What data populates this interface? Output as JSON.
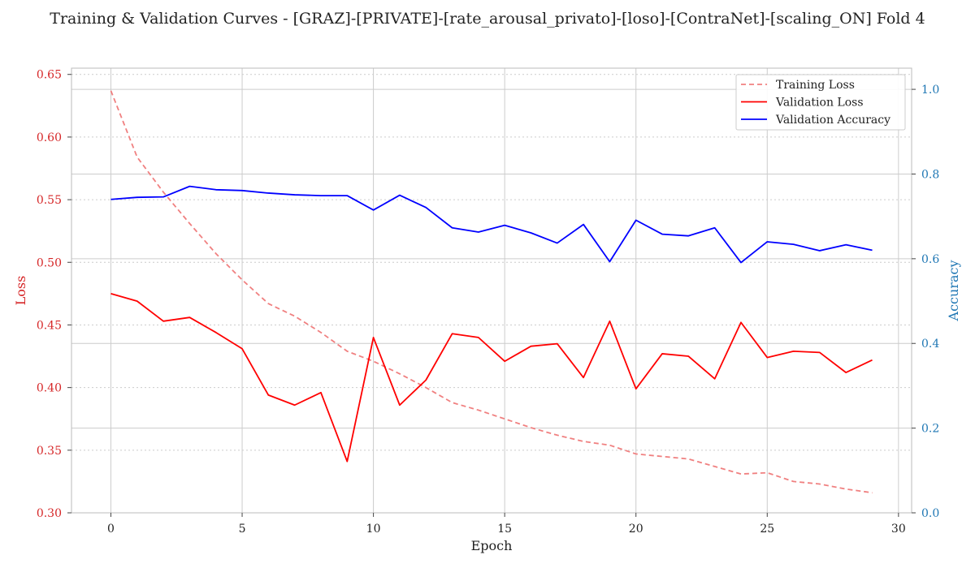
{
  "chart_data": {
    "type": "line",
    "title": "Training & Validation Curves - [GRAZ]-[PRIVATE]-[rate_arousal_privato]-[loso]-[ContraNet]-[scaling_ON] Fold 4",
    "xlabel": "Epoch",
    "ylabel_left": "Loss",
    "ylabel_right": "Accuracy",
    "xlim": [
      -1.5,
      30.5
    ],
    "ylim_left": [
      0.3,
      0.655
    ],
    "ylim_right": [
      0.0,
      1.05
    ],
    "xticks": [
      "0",
      "5",
      "10",
      "15",
      "20",
      "25",
      "30"
    ],
    "yticks_left": [
      "0.30",
      "0.35",
      "0.40",
      "0.45",
      "0.50",
      "0.55",
      "0.60",
      "0.65"
    ],
    "yticks_right": [
      "0.0",
      "0.2",
      "0.4",
      "0.6",
      "0.8",
      "1.0"
    ],
    "grid": true,
    "legend_position": "top-right",
    "x": [
      0,
      1,
      2,
      3,
      4,
      5,
      6,
      7,
      8,
      9,
      10,
      11,
      12,
      13,
      14,
      15,
      16,
      17,
      18,
      19,
      20,
      21,
      22,
      23,
      24,
      25,
      26,
      27,
      28,
      29
    ],
    "series": [
      {
        "name": "Training Loss",
        "axis": "left",
        "color": "#f08080",
        "style": "dashed",
        "values": [
          0.637,
          0.584,
          0.556,
          0.531,
          0.507,
          0.486,
          0.467,
          0.457,
          0.444,
          0.429,
          0.421,
          0.411,
          0.4,
          0.388,
          0.382,
          0.375,
          0.368,
          0.362,
          0.357,
          0.354,
          0.347,
          0.345,
          0.343,
          0.337,
          0.331,
          0.332,
          0.325,
          0.323,
          0.319,
          0.316
        ]
      },
      {
        "name": "Validation Loss",
        "axis": "left",
        "color": "#ff0000",
        "style": "solid",
        "values": [
          0.475,
          0.469,
          0.453,
          0.456,
          0.444,
          0.431,
          0.394,
          0.386,
          0.396,
          0.341,
          0.44,
          0.386,
          0.406,
          0.443,
          0.44,
          0.421,
          0.433,
          0.435,
          0.408,
          0.453,
          0.399,
          0.427,
          0.425,
          0.407,
          0.452,
          0.424,
          0.429,
          0.428,
          0.412,
          0.422
        ]
      },
      {
        "name": "Validation Accuracy",
        "axis": "right",
        "color": "#0000ff",
        "style": "solid",
        "values": [
          0.74,
          0.745,
          0.746,
          0.771,
          0.763,
          0.761,
          0.755,
          0.751,
          0.749,
          0.749,
          0.715,
          0.75,
          0.721,
          0.673,
          0.663,
          0.679,
          0.661,
          0.637,
          0.681,
          0.593,
          0.691,
          0.658,
          0.654,
          0.673,
          0.591,
          0.64,
          0.634,
          0.619,
          0.633,
          0.62
        ]
      }
    ]
  }
}
